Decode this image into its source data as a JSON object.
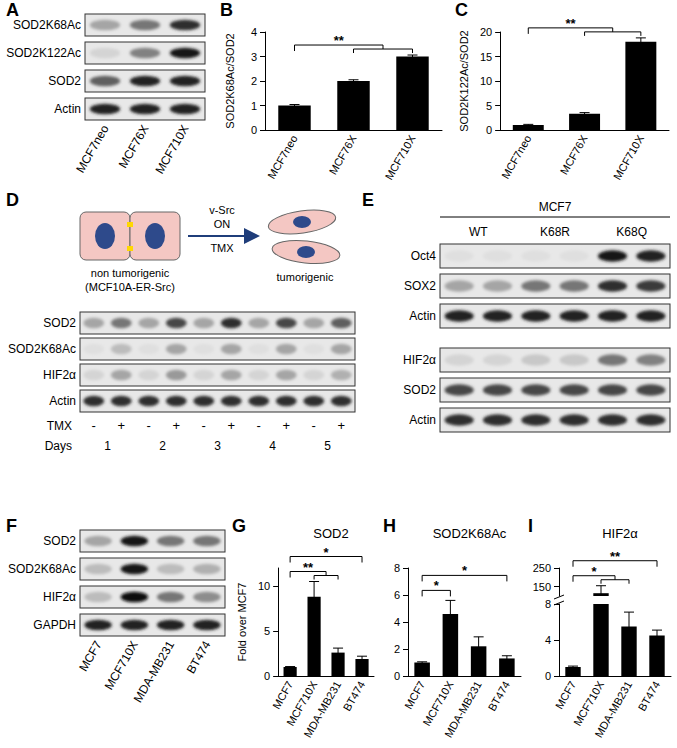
{
  "panel_letters": [
    "A",
    "B",
    "C",
    "D",
    "E",
    "F",
    "G",
    "H",
    "I"
  ],
  "blot_A": {
    "rows": [
      "SOD2K68Ac",
      "SOD2K122Ac",
      "SOD2",
      "Actin"
    ],
    "lanes": [
      "MCF7neo",
      "MCF76X",
      "MCF710X"
    ]
  },
  "diagram_D": {
    "left_label": [
      "non tumorigenic",
      "(MCF10A-ER-Src)"
    ],
    "arrow_above": [
      "v-Src",
      "ON"
    ],
    "arrow_below": "TMX",
    "right_label": "tumorigenic"
  },
  "blot_D": {
    "rows": [
      "SOD2",
      "SOD2K68Ac",
      "HIF2α",
      "Actin"
    ],
    "treatment_label": "TMX",
    "treatment": [
      "-",
      "+",
      "-",
      "+",
      "-",
      "+",
      "-",
      "+",
      "-",
      "+"
    ],
    "days_label": "Days",
    "days": [
      "1",
      "2",
      "3",
      "4",
      "5"
    ]
  },
  "blot_E": {
    "header": "MCF7",
    "groups": [
      "WT",
      "K68R",
      "K68Q"
    ],
    "rows": [
      "Oct4",
      "SOX2",
      "Actin",
      "HIF2α",
      "SOD2",
      "Actin"
    ]
  },
  "blot_F": {
    "rows": [
      "SOD2",
      "SOD2K68Ac",
      "HIF2α",
      "GAPDH"
    ],
    "lanes": [
      "MCF7",
      "MCF710X",
      "MDA-MB231",
      "BT474"
    ]
  },
  "chart_data": [
    {
      "type": "bar",
      "categories": [
        "MCF7neo",
        "MCF76X",
        "MCF710X"
      ],
      "values": [
        1,
        2,
        3
      ],
      "errors": [
        0.04,
        0.05,
        0.06
      ],
      "color": "#000000",
      "ylabel": "SOD2K68Ac/SOD2",
      "ylim": [
        0,
        4
      ],
      "yticks": [
        0,
        1,
        2,
        3,
        4
      ],
      "significance": [
        {
          "from": 0,
          "to": [
            1,
            2
          ],
          "label": "**"
        }
      ]
    },
    {
      "type": "bar",
      "categories": [
        "MCF7neo",
        "MCF76X",
        "MCF710X"
      ],
      "values": [
        1,
        3.3,
        18
      ],
      "errors": [
        0.15,
        0.25,
        0.8
      ],
      "color": "#000000",
      "ylabel": "SOD2K122Ac/SOD2",
      "ylim": [
        0,
        20
      ],
      "yticks": [
        0,
        5,
        10,
        15,
        20
      ],
      "significance": [
        {
          "from": 0,
          "to": [
            1,
            2
          ],
          "label": "**"
        }
      ]
    },
    {
      "type": "bar",
      "title": "SOD2",
      "categories": [
        "MCF7",
        "MCF710X",
        "MDA-MB231",
        "BT474"
      ],
      "values": [
        1,
        8.8,
        2.6,
        1.9
      ],
      "errors": [
        0.05,
        1.7,
        0.5,
        0.3
      ],
      "color": "#000000",
      "ylabel": "Fold over MCF7",
      "ylim": [
        0,
        12
      ],
      "yticks": [
        0,
        5,
        10
      ],
      "significance": [
        {
          "from": 0,
          "to": [
            1,
            2
          ],
          "label": "**"
        },
        {
          "from": 0,
          "to": [
            3
          ],
          "label": "*"
        }
      ]
    },
    {
      "type": "bar",
      "title": "SOD2K68Ac",
      "categories": [
        "MCF7",
        "MCF710X",
        "MDA-MB231",
        "BT474"
      ],
      "values": [
        1,
        4.6,
        2.2,
        1.3
      ],
      "errors": [
        0.05,
        1.0,
        0.7,
        0.2
      ],
      "color": "#000000",
      "ylim": [
        0,
        8
      ],
      "yticks": [
        0,
        2,
        4,
        6,
        8
      ],
      "significance": [
        {
          "from": 0,
          "to": [
            1
          ],
          "label": "*"
        },
        {
          "from": 0,
          "to": [
            3
          ],
          "label": "*"
        }
      ]
    },
    {
      "type": "bar",
      "title": "HIF2α",
      "categories": [
        "MCF7",
        "MCF710X",
        "MDA-MB231",
        "BT474"
      ],
      "values": [
        1,
        115,
        5.5,
        4.5
      ],
      "errors": [
        0.1,
        40,
        1.6,
        0.6
      ],
      "color": "#000000",
      "ylim": [
        0,
        250
      ],
      "yticks": [
        0,
        4,
        8,
        150,
        250
      ],
      "y_break": [
        8,
        100
      ],
      "significance": [
        {
          "from": 0,
          "to": [
            1,
            2
          ],
          "label": "*"
        },
        {
          "from": 0,
          "to": [
            3
          ],
          "label": "**"
        }
      ]
    }
  ]
}
